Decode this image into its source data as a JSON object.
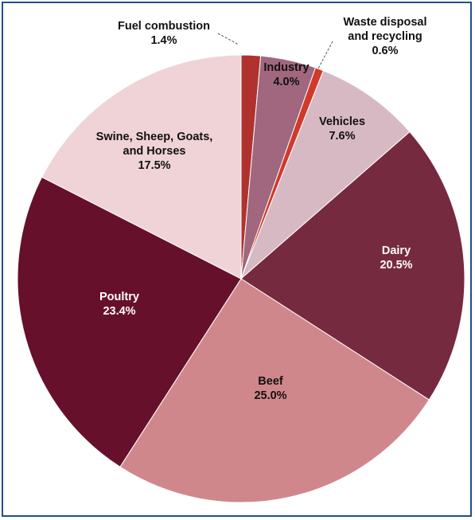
{
  "chart_data": {
    "type": "pie",
    "slices": [
      {
        "key": "fuel",
        "label": [
          "Fuel combustion"
        ],
        "value": 1.4,
        "value_label": "1.4%",
        "color": "#b0322f",
        "text": "dark",
        "external": true
      },
      {
        "key": "industry",
        "label": [
          "Industry"
        ],
        "value": 4.0,
        "value_label": "4.0%",
        "color": "#a0677e",
        "text": "dark",
        "external": false
      },
      {
        "key": "waste",
        "label": [
          "Waste disposal",
          "and recycling"
        ],
        "value": 0.6,
        "value_label": "0.6%",
        "color": "#cf3a2a",
        "text": "dark",
        "external": true
      },
      {
        "key": "vehicles",
        "label": [
          "Vehicles"
        ],
        "value": 7.6,
        "value_label": "7.6%",
        "color": "#d7b9c4",
        "text": "dark",
        "external": false
      },
      {
        "key": "dairy",
        "label": [
          "Dairy"
        ],
        "value": 20.5,
        "value_label": "20.5%",
        "color": "#762a3f",
        "text": "light",
        "external": false
      },
      {
        "key": "beef",
        "label": [
          "Beef"
        ],
        "value": 25.0,
        "value_label": "25.0%",
        "color": "#d0878b",
        "text": "dark",
        "external": false
      },
      {
        "key": "poultry",
        "label": [
          "Poultry"
        ],
        "value": 23.4,
        "value_label": "23.4%",
        "color": "#66102b",
        "text": "light",
        "external": false
      },
      {
        "key": "swine",
        "label": [
          "Swine, Sheep, Goats,",
          "and Horses"
        ],
        "value": 17.5,
        "value_label": "17.5%",
        "color": "#efd3d6",
        "text": "dark",
        "external": false
      }
    ]
  }
}
